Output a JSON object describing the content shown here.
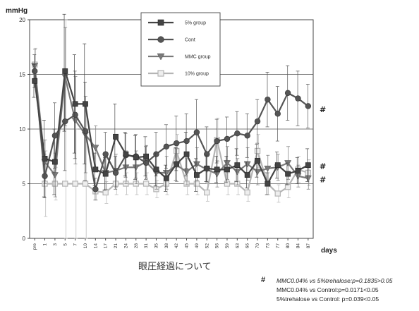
{
  "chart_data": {
    "type": "line",
    "ylabel": "mmHg",
    "xlabel": "days",
    "ylim": [
      0,
      20
    ],
    "yticks": [
      0,
      5,
      10,
      15,
      20
    ],
    "grid": true,
    "legend_position": "top-center",
    "categories": [
      "pre",
      "1",
      "3",
      "5",
      "7",
      "10",
      "14",
      "17",
      "21",
      "24",
      "28",
      "31",
      "35",
      "38",
      "42",
      "45",
      "49",
      "52",
      "56",
      "59",
      "63",
      "66",
      "70",
      "73",
      "77",
      "80",
      "84",
      "87"
    ],
    "series": [
      {
        "name": "5% group",
        "marker": "square",
        "color": "#444444",
        "values": [
          14.4,
          7.3,
          7.0,
          15.3,
          12.3,
          12.3,
          6.3,
          5.9,
          9.3,
          7.7,
          7.4,
          7.5,
          6.3,
          5.5,
          6.8,
          7.7,
          5.8,
          6.4,
          6.3,
          6.3,
          6.7,
          5.8,
          7.1,
          5.0,
          6.7,
          5.9,
          6.2,
          6.7
        ],
        "errors": [
          1.5,
          3.5,
          3.0,
          5.5,
          4.5,
          5.5,
          1.5,
          1.5,
          3.0,
          2.0,
          2.0,
          1.8,
          1.5,
          1.2,
          1.5,
          2.0,
          1.5,
          1.2,
          1.2,
          1.2,
          1.5,
          1.2,
          1.5,
          1.0,
          1.2,
          1.0,
          1.2,
          1.5
        ]
      },
      {
        "name": "Cont",
        "marker": "circle",
        "color": "#555555",
        "values": [
          15.3,
          5.7,
          9.4,
          10.7,
          11.3,
          9.8,
          4.5,
          7.7,
          6.0,
          7.6,
          7.5,
          6.9,
          7.7,
          8.4,
          8.7,
          8.9,
          9.7,
          7.7,
          8.9,
          9.1,
          9.6,
          9.4,
          10.7,
          12.7,
          11.4,
          13.3,
          12.8,
          12.1
        ],
        "errors": [
          1.5,
          2.0,
          3.0,
          4.5,
          4.0,
          4.5,
          1.0,
          2.0,
          1.5,
          2.0,
          2.0,
          1.5,
          2.0,
          2.0,
          2.5,
          2.5,
          3.0,
          2.5,
          2.0,
          2.0,
          2.0,
          2.0,
          2.0,
          2.5,
          2.5,
          2.5,
          2.5,
          2.0
        ]
      },
      {
        "name": "MMC group",
        "marker": "triangle-down",
        "color": "#7a7a7a",
        "values": [
          15.8,
          7.0,
          5.8,
          14.8,
          10.8,
          9.5,
          8.3,
          6.0,
          6.2,
          6.5,
          6.5,
          7.0,
          6.0,
          6.0,
          6.7,
          6.1,
          6.8,
          6.3,
          5.9,
          6.9,
          6.1,
          6.8,
          6.1,
          6.4,
          6.5,
          6.9,
          5.7,
          5.5
        ],
        "errors": [
          1.5,
          2.0,
          2.0,
          4.5,
          4.0,
          3.5,
          2.0,
          1.5,
          1.5,
          1.5,
          1.5,
          1.5,
          1.5,
          1.5,
          1.5,
          1.2,
          1.5,
          1.2,
          1.2,
          1.5,
          1.2,
          1.5,
          1.2,
          1.2,
          1.2,
          1.5,
          1.0,
          1.0
        ]
      },
      {
        "name": "10% group",
        "marker": "square-open",
        "color": "#b5b5b5",
        "values": [
          15.9,
          5.0,
          5.0,
          5.0,
          5.0,
          5.0,
          4.3,
          4.2,
          5.0,
          5.0,
          5.0,
          5.0,
          4.5,
          5.0,
          8.0,
          5.0,
          5.0,
          4.2,
          9.0,
          5.0,
          5.0,
          4.2,
          8.0,
          5.0,
          4.1,
          4.7,
          6.3,
          6.0
        ],
        "errors": [
          1.5,
          3.0,
          1.5,
          15.0,
          5.0,
          7.0,
          0.8,
          1.0,
          1.0,
          1.0,
          1.0,
          1.0,
          0.8,
          1.0,
          1.5,
          1.0,
          1.0,
          0.8,
          2.0,
          1.0,
          1.0,
          0.8,
          1.5,
          1.0,
          0.8,
          1.0,
          1.2,
          1.2
        ]
      }
    ],
    "significance_marks": [
      {
        "symbol": "#",
        "y": 11.8
      },
      {
        "symbol": "#",
        "y": 6.6
      },
      {
        "symbol": "#",
        "y": 5.4
      }
    ]
  },
  "caption": "眼圧経過について",
  "notes": {
    "hash": "#",
    "lines": [
      "MMC0.04% vs 5%trehalose:p=0.1835>0.05",
      "MMC0.04% vs Control:p=0.0171<0.05",
      "5%trehalose vs Control: p=0.039<0.05"
    ]
  }
}
